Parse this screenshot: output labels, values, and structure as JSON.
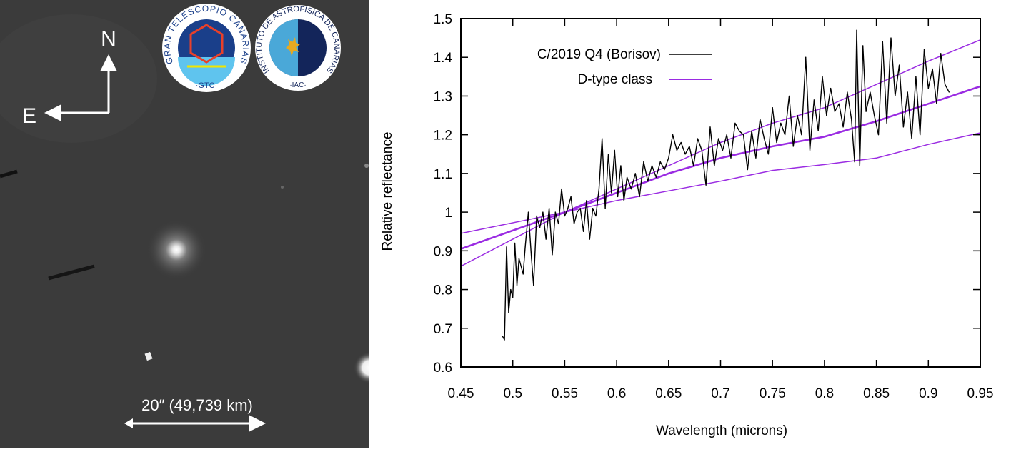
{
  "image_panel": {
    "north_label": "N",
    "east_label": "E",
    "scale_label": "20″ (49,739 km)",
    "background_color": "#3b3b3b",
    "logos": [
      {
        "name": "gtc-logo",
        "ring_text": "GRAN TELESCOPIO CANARIAS",
        "bottom_text": "·GTC·"
      },
      {
        "name": "iac-logo",
        "ring_text": "INSTITUTO DE ASTROFISICA DE CANARIAS",
        "bottom_text": "·IAC·"
      }
    ]
  },
  "chart_data": {
    "type": "line",
    "title": "",
    "xlabel": "Wavelength (microns)",
    "ylabel": "Relative reflectance",
    "xlim": [
      0.45,
      0.95
    ],
    "ylim": [
      0.6,
      1.5
    ],
    "x_ticks": [
      "0.45",
      "0.5",
      "0.55",
      "0.6",
      "0.65",
      "0.7",
      "0.75",
      "0.8",
      "0.85",
      "0.9",
      "0.95"
    ],
    "y_ticks": [
      "0.6",
      "0.7",
      "0.8",
      "0.9",
      "1",
      "1.1",
      "1.2",
      "1.3",
      "1.4",
      "1.5"
    ],
    "grid": false,
    "legend_position": "top-left",
    "series": [
      {
        "name": "C/2019 Q4 (Borisov)",
        "color": "#000000",
        "x": [
          0.49,
          0.492,
          0.494,
          0.496,
          0.498,
          0.5,
          0.502,
          0.504,
          0.506,
          0.508,
          0.51,
          0.512,
          0.515,
          0.518,
          0.52,
          0.523,
          0.526,
          0.529,
          0.532,
          0.535,
          0.538,
          0.541,
          0.544,
          0.547,
          0.55,
          0.553,
          0.556,
          0.559,
          0.562,
          0.565,
          0.568,
          0.571,
          0.574,
          0.577,
          0.58,
          0.583,
          0.586,
          0.589,
          0.592,
          0.595,
          0.598,
          0.601,
          0.604,
          0.607,
          0.61,
          0.614,
          0.618,
          0.622,
          0.626,
          0.63,
          0.634,
          0.638,
          0.642,
          0.646,
          0.65,
          0.654,
          0.658,
          0.662,
          0.666,
          0.67,
          0.674,
          0.678,
          0.682,
          0.686,
          0.69,
          0.694,
          0.698,
          0.702,
          0.706,
          0.71,
          0.714,
          0.718,
          0.722,
          0.726,
          0.73,
          0.734,
          0.738,
          0.742,
          0.746,
          0.75,
          0.754,
          0.758,
          0.762,
          0.766,
          0.77,
          0.774,
          0.778,
          0.782,
          0.786,
          0.79,
          0.794,
          0.798,
          0.802,
          0.806,
          0.81,
          0.814,
          0.818,
          0.822,
          0.826,
          0.829,
          0.831,
          0.834,
          0.837,
          0.84,
          0.844,
          0.848,
          0.852,
          0.856,
          0.86,
          0.864,
          0.868,
          0.872,
          0.876,
          0.88,
          0.884,
          0.888,
          0.892,
          0.896,
          0.9,
          0.904,
          0.908,
          0.912,
          0.916,
          0.92
        ],
        "y": [
          0.68,
          0.67,
          0.91,
          0.74,
          0.8,
          0.78,
          0.92,
          0.81,
          0.88,
          0.86,
          0.84,
          0.91,
          1.0,
          0.88,
          0.81,
          0.99,
          0.96,
          1.0,
          0.93,
          1.01,
          0.89,
          1.0,
          0.97,
          1.06,
          0.99,
          1.01,
          1.04,
          0.97,
          1.0,
          1.01,
          0.95,
          1.03,
          0.93,
          1.01,
          0.99,
          1.06,
          1.19,
          1.01,
          1.15,
          1.05,
          1.16,
          1.04,
          1.12,
          1.03,
          1.09,
          1.06,
          1.1,
          1.04,
          1.13,
          1.08,
          1.12,
          1.09,
          1.13,
          1.11,
          1.14,
          1.2,
          1.16,
          1.18,
          1.15,
          1.17,
          1.12,
          1.19,
          1.16,
          1.07,
          1.22,
          1.12,
          1.19,
          1.16,
          1.2,
          1.14,
          1.23,
          1.21,
          1.2,
          1.11,
          1.21,
          1.14,
          1.24,
          1.19,
          1.15,
          1.27,
          1.18,
          1.23,
          1.2,
          1.3,
          1.17,
          1.25,
          1.2,
          1.4,
          1.16,
          1.29,
          1.21,
          1.35,
          1.25,
          1.32,
          1.26,
          1.28,
          1.22,
          1.31,
          1.24,
          1.13,
          1.47,
          1.12,
          1.43,
          1.26,
          1.31,
          1.25,
          1.2,
          1.44,
          1.23,
          1.45,
          1.3,
          1.38,
          1.22,
          1.31,
          1.19,
          1.35,
          1.2,
          1.42,
          1.32,
          1.37,
          1.28,
          1.41,
          1.33,
          1.31
        ]
      },
      {
        "name": "D-type class",
        "color": "#9a2be2",
        "lines": [
          {
            "x": [
              0.45,
              0.55,
              0.6,
              0.65,
              0.7,
              0.75,
              0.8,
              0.85,
              0.9,
              0.95
            ],
            "y": [
              0.905,
              1.0,
              1.05,
              1.1,
              1.14,
              1.17,
              1.195,
              1.235,
              1.28,
              1.325
            ]
          },
          {
            "x": [
              0.45,
              0.55,
              0.6,
              0.65,
              0.7,
              0.75,
              0.8,
              0.85,
              0.9,
              0.95
            ],
            "y": [
              0.86,
              1.0,
              1.06,
              1.12,
              1.18,
              1.23,
              1.27,
              1.33,
              1.39,
              1.445
            ]
          },
          {
            "x": [
              0.45,
              0.55,
              0.6,
              0.65,
              0.7,
              0.75,
              0.8,
              0.85,
              0.9,
              0.95
            ],
            "y": [
              0.945,
              1.0,
              1.03,
              1.055,
              1.08,
              1.108,
              1.123,
              1.14,
              1.175,
              1.205
            ]
          }
        ]
      }
    ]
  }
}
